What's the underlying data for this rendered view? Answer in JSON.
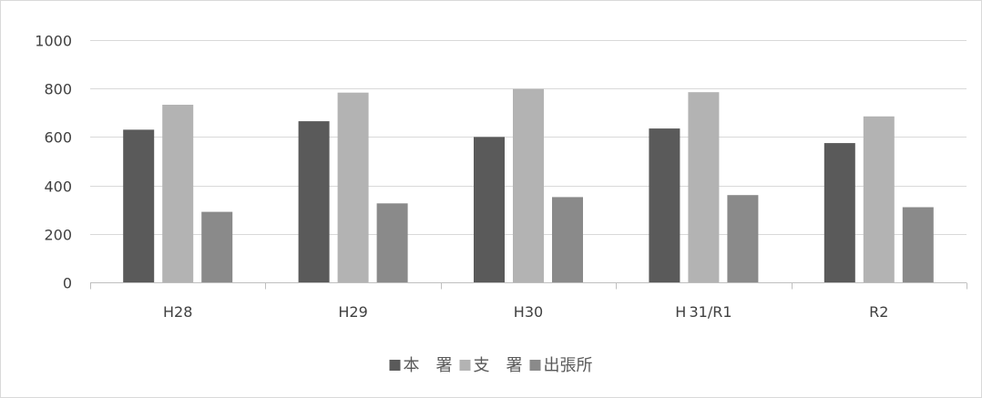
{
  "chart_data": {
    "type": "bar",
    "title": "",
    "xlabel": "",
    "ylabel": "",
    "categories": [
      "H28",
      "H29",
      "H30",
      "H 31/R1",
      "R2"
    ],
    "series": [
      {
        "name": "本　署",
        "values": [
          630,
          665,
          600,
          635,
          575
        ],
        "color": "#5a5a5a"
      },
      {
        "name": "支　署",
        "values": [
          733,
          783,
          798,
          785,
          685
        ],
        "color": "#b3b3b3"
      },
      {
        "name": "出張所",
        "values": [
          291,
          326,
          352,
          360,
          310
        ],
        "color": "#8a8a8a"
      }
    ],
    "ylim": [
      0,
      1000
    ],
    "yticks": [
      0,
      200,
      400,
      600,
      800,
      1000
    ],
    "ytick_labels": [
      "0",
      "200",
      "400",
      "600",
      "800",
      "1000"
    ],
    "grid": true,
    "legend_position": "bottom",
    "gridline_color": "#d9d9d9",
    "axis_color": "#bfbfbf"
  }
}
